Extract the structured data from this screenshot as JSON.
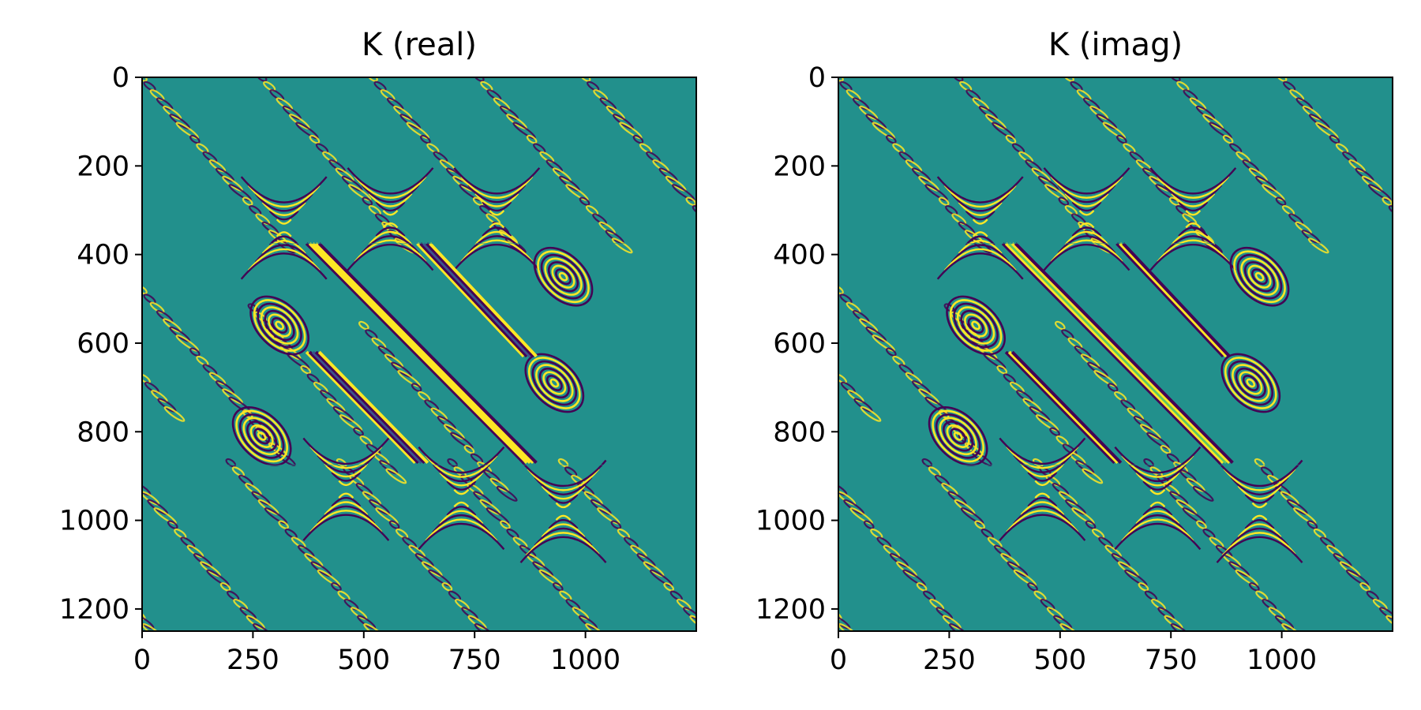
{
  "chart_data": [
    {
      "type": "heatmap",
      "title": "K (real)",
      "xlabel": "",
      "ylabel": "",
      "xlim": [
        0,
        1250
      ],
      "ylim": [
        1250,
        0
      ],
      "xticks": [
        0,
        250,
        500,
        750,
        1000
      ],
      "yticks": [
        0,
        200,
        400,
        600,
        800,
        1000,
        1200
      ],
      "colormap": "viridis",
      "component": "real",
      "grid": false,
      "legend": "none"
    },
    {
      "type": "heatmap",
      "title": "K (imag)",
      "xlabel": "",
      "ylabel": "",
      "xlim": [
        0,
        1250
      ],
      "ylim": [
        1250,
        0
      ],
      "xticks": [
        0,
        250,
        500,
        750,
        1000
      ],
      "yticks": [
        0,
        200,
        400,
        600,
        800,
        1000,
        1200
      ],
      "colormap": "viridis",
      "component": "imag",
      "grid": false,
      "legend": "none"
    }
  ],
  "colors": {
    "background": "#22908c",
    "high": "#fde725",
    "low": "#440154",
    "mid_high": "#5ec962",
    "mid_low": "#3b528b"
  }
}
